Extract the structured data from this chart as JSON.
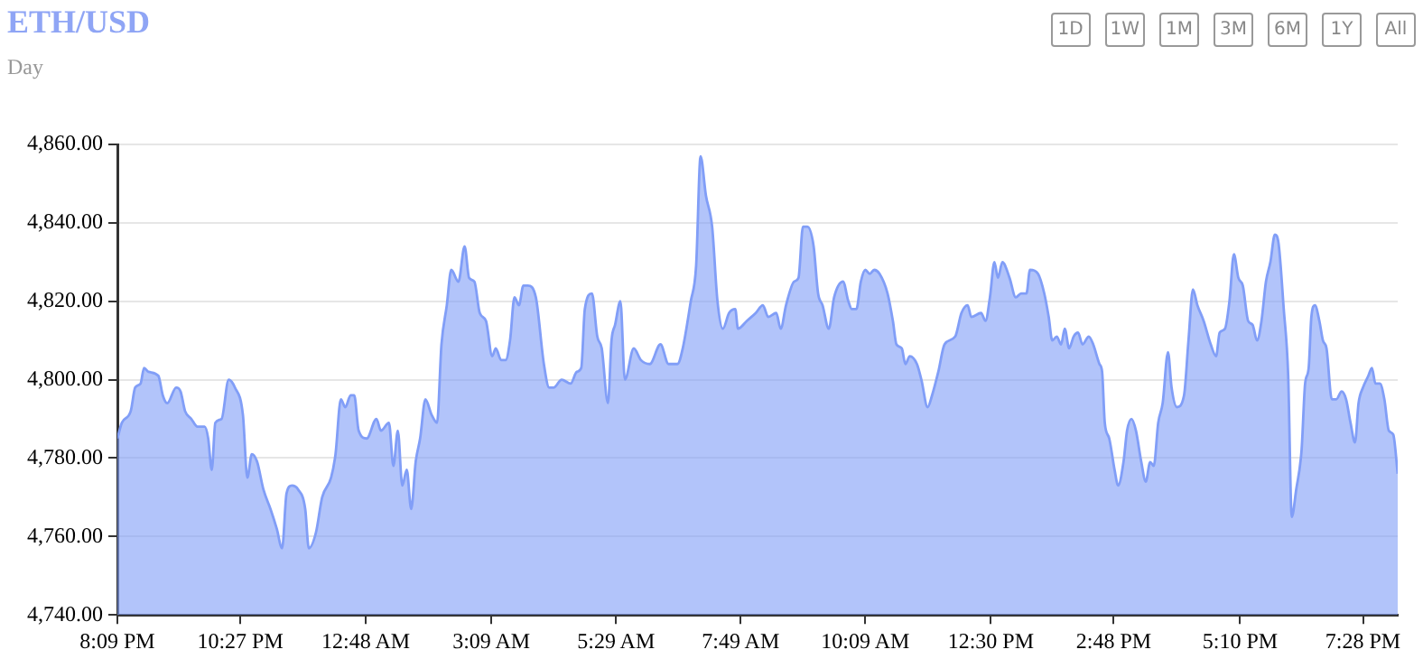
{
  "chart_data": {
    "type": "area",
    "title": "ETH/USD",
    "subtitle": "Day",
    "annotations": [
      "1D",
      "1W",
      "1M",
      "3M",
      "6M",
      "1Y",
      "All"
    ],
    "xlim": [
      "--11-09T20:09",
      "--11-10T20:07"
    ],
    "xticks": [
      {
        "value": "--11-09T20:09",
        "label": "8:09 PM"
      },
      {
        "value": "--11-09T22:27",
        "label": "10:27 PM"
      },
      {
        "value": "--11-10T00:48",
        "label": "12:48 AM"
      },
      {
        "value": "--11-10T03:09",
        "label": "3:09 AM"
      },
      {
        "value": "--11-10T05:29",
        "label": "5:29 AM"
      },
      {
        "value": "--11-10T07:49",
        "label": "7:49 AM"
      },
      {
        "value": "--11-10T10:09",
        "label": "10:09 AM"
      },
      {
        "value": "--11-10T12:30",
        "label": "12:30 PM"
      },
      {
        "value": "--11-10T14:48",
        "label": "2:48 PM"
      },
      {
        "value": "--11-10T17:10",
        "label": "5:10 PM"
      },
      {
        "value": "--11-10T19:28",
        "label": "7:28 PM"
      }
    ],
    "ylim": [
      4740,
      4860
    ],
    "yticks": [
      {
        "value": 4740,
        "label": "4,740.00"
      },
      {
        "value": 4760,
        "label": "4,760.00"
      },
      {
        "value": 4780,
        "label": "4,780.00"
      },
      {
        "value": 4800,
        "label": "4,800.00"
      },
      {
        "value": 4820,
        "label": "4,820.00"
      },
      {
        "value": 4840,
        "label": "4,840.00"
      },
      {
        "value": 4860,
        "label": "4,860.00"
      }
    ],
    "grid": "y",
    "legend": false,
    "marker": "none",
    "line_style": "solid",
    "series": [
      {
        "color": "#819ef7",
        "x": [
          "--11-09T20:09",
          "--11-09T20:14",
          "--11-09T20:24",
          "--11-09T20:29",
          "--11-09T20:35",
          "--11-09T20:39",
          "--11-09T20:44",
          "--11-09T20:55",
          "--11-09T21:00",
          "--11-09T21:05",
          "--11-09T21:15",
          "--11-09T21:20",
          "--11-09T21:25",
          "--11-09T21:32",
          "--11-09T21:39",
          "--11-09T21:47",
          "--11-09T21:51",
          "--11-09T21:55",
          "--11-09T21:59",
          "--11-09T22:06",
          "--11-09T22:14",
          "--11-09T22:21",
          "--11-09T22:30",
          "--11-09T22:35",
          "--11-09T22:40",
          "--11-09T22:46",
          "--11-09T22:53",
          "--11-09T23:01",
          "--11-09T23:08",
          "--11-09T23:14",
          "--11-09T23:19",
          "--11-09T23:25",
          "--11-09T23:32",
          "--11-09T23:40",
          "--11-09T23:44",
          "--11-09T23:52",
          "--11-09T23:59",
          "--11-10T00:09",
          "--11-10T00:14",
          "--11-10T00:20",
          "--11-10T00:25",
          "--11-10T00:31",
          "--11-10T00:35",
          "--11-10T00:40",
          "--11-10T00:49",
          "--11-10T01:00",
          "--11-10T01:05",
          "--11-10T01:14",
          "--11-10T01:19",
          "--11-10T01:24",
          "--11-10T01:29",
          "--11-10T01:34",
          "--11-10T01:39",
          "--11-10T01:44",
          "--11-10T01:49",
          "--11-10T01:55",
          "--11-10T02:02",
          "--11-10T02:08",
          "--11-10T02:13",
          "--11-10T02:19",
          "--11-10T02:24",
          "--11-10T02:32",
          "--11-10T02:39",
          "--11-10T02:44",
          "--11-10T02:50",
          "--11-10T02:56",
          "--11-10T03:03",
          "--11-10T03:10",
          "--11-10T03:14",
          "--11-10T03:20",
          "--11-10T03:25",
          "--11-10T03:30",
          "--11-10T03:35",
          "--11-10T03:40",
          "--11-10T03:45",
          "--11-10T03:50",
          "--11-10T03:59",
          "--11-10T04:08",
          "--11-10T04:14",
          "--11-10T04:19",
          "--11-10T04:28",
          "--11-10T04:38",
          "--11-10T04:45",
          "--11-10T04:50",
          "--11-10T04:54",
          "--11-10T05:02",
          "--11-10T05:08",
          "--11-10T05:13",
          "--11-10T05:20",
          "--11-10T05:24",
          "--11-10T05:28",
          "--11-10T05:34",
          "--11-10T05:39",
          "--11-10T05:49",
          "--11-10T05:57",
          "--11-10T06:07",
          "--11-10T06:19",
          "--11-10T06:28",
          "--11-10T06:38",
          "--11-10T06:44",
          "--11-10T06:53",
          "--11-10T06:59",
          "--11-10T07:04",
          "--11-10T07:10",
          "--11-10T07:17",
          "--11-10T07:23",
          "--11-10T07:29",
          "--11-10T07:36",
          "--11-10T07:43",
          "--11-10T07:46",
          "--11-10T07:56",
          "--11-10T08:06",
          "--11-10T08:14",
          "--11-10T08:20",
          "--11-10T08:29",
          "--11-10T08:34",
          "--11-10T08:40",
          "--11-10T08:49",
          "--11-10T08:54",
          "--11-10T08:59",
          "--11-10T09:04",
          "--11-10T09:11",
          "--11-10T09:16",
          "--11-10T09:21",
          "--11-10T09:28",
          "--11-10T09:34",
          "--11-10T09:44",
          "--11-10T09:50",
          "--11-10T09:54",
          "--11-10T09:59",
          "--11-10T10:04",
          "--11-10T10:09",
          "--11-10T10:14",
          "--11-10T10:19",
          "--11-10T10:25",
          "--11-10T10:34",
          "--11-10T10:40",
          "--11-10T10:44",
          "--11-10T10:50",
          "--11-10T10:54",
          "--11-10T10:59",
          "--11-10T11:07",
          "--11-10T11:12",
          "--11-10T11:19",
          "--11-10T11:24",
          "--11-10T11:31",
          "--11-10T11:38",
          "--11-10T11:50",
          "--11-10T11:57",
          "--11-10T12:04",
          "--11-10T12:08",
          "--11-10T12:19",
          "--11-10T12:24",
          "--11-10T12:29",
          "--11-10T12:34",
          "--11-10T12:38",
          "--11-10T12:43",
          "--11-10T12:51",
          "--11-10T12:58",
          "--11-10T13:04",
          "--11-10T13:10",
          "--11-10T13:14",
          "--11-10T13:23",
          "--11-10T13:30",
          "--11-10T13:35",
          "--11-10T13:39",
          "--11-10T13:44",
          "--11-10T13:49",
          "--11-10T13:53",
          "--11-10T13:58",
          "--11-10T14:03",
          "--11-10T14:08",
          "--11-10T14:13",
          "--11-10T14:20",
          "--11-10T14:25",
          "--11-10T14:32",
          "--11-10T14:35",
          "--11-10T14:38",
          "--11-10T14:43",
          "--11-10T14:49",
          "--11-10T14:53",
          "--11-10T14:59",
          "--11-10T15:03",
          "--11-10T15:08",
          "--11-10T15:13",
          "--11-10T15:19",
          "--11-10T15:24",
          "--11-10T15:29",
          "--11-10T15:33",
          "--11-10T15:38",
          "--11-10T15:43",
          "--11-10T15:49",
          "--11-10T15:53",
          "--11-10T15:59",
          "--11-10T16:07",
          "--11-10T16:12",
          "--11-10T16:17",
          "--11-10T16:22",
          "--11-10T16:29",
          "--11-10T16:37",
          "--11-10T16:43",
          "--11-10T16:47",
          "--11-10T16:53",
          "--11-10T16:58",
          "--11-10T17:03",
          "--11-10T17:08",
          "--11-10T17:13",
          "--11-10T17:19",
          "--11-10T17:24",
          "--11-10T17:29",
          "--11-10T17:34",
          "--11-10T17:39",
          "--11-10T17:44",
          "--11-10T17:49",
          "--11-10T17:53",
          "--11-10T17:59",
          "--11-10T18:04",
          "--11-10T18:08",
          "--11-10T18:13",
          "--11-10T18:19",
          "--11-10T18:23",
          "--11-10T18:27",
          "--11-10T18:30",
          "--11-10T18:34",
          "--11-10T18:39",
          "--11-10T18:43",
          "--11-10T18:47",
          "--11-10T18:53",
          "--11-10T18:58",
          "--11-10T19:04",
          "--11-10T19:09",
          "--11-10T19:14",
          "--11-10T19:19",
          "--11-10T19:23",
          "--11-10T19:28",
          "--11-10T19:34",
          "--11-10T19:38",
          "--11-10T19:42",
          "--11-10T19:47",
          "--11-10T19:52",
          "--11-10T19:57",
          "--11-10T20:02",
          "--11-10T20:07"
        ],
        "values": [
          4785,
          4789,
          4792,
          4798,
          4799,
          4803,
          4802,
          4801,
          4796,
          4794,
          4798,
          4797,
          4792,
          4790,
          4788,
          4788,
          4785,
          4777,
          4789,
          4790,
          4800,
          4798,
          4791,
          4775,
          4781,
          4779,
          4772,
          4767,
          4762,
          4757,
          4771,
          4773,
          4772,
          4767,
          4757,
          4761,
          4770,
          4775,
          4781,
          4795,
          4793,
          4796,
          4796,
          4787,
          4785,
          4790,
          4787,
          4789,
          4778,
          4787,
          4773,
          4777,
          4767,
          4779,
          4785,
          4795,
          4791,
          4789,
          4809,
          4819,
          4828,
          4825,
          4834,
          4826,
          4825,
          4817,
          4815,
          4806,
          4808,
          4805,
          4805,
          4810,
          4821,
          4819,
          4824,
          4824,
          4821,
          4804,
          4798,
          4798,
          4800,
          4799,
          4802,
          4803,
          4818,
          4822,
          4811,
          4808,
          4794,
          4810,
          4814,
          4820,
          4800,
          4808,
          4805,
          4804,
          4809,
          4804,
          4804,
          4808,
          4820,
          4829,
          4857,
          4847,
          4839,
          4820,
          4813,
          4817,
          4818,
          4813,
          4815,
          4817,
          4819,
          4816,
          4817,
          4813,
          4819,
          4825,
          4826,
          4839,
          4839,
          4834,
          4822,
          4819,
          4813,
          4821,
          4825,
          4820,
          4818,
          4818,
          4825,
          4828,
          4827,
          4828,
          4827,
          4822,
          4815,
          4809,
          4808,
          4804,
          4806,
          4804,
          4800,
          4793,
          4796,
          4802,
          4809,
          4811,
          4817,
          4819,
          4816,
          4817,
          4815,
          4821,
          4830,
          4826,
          4830,
          4826,
          4821,
          4822,
          4822,
          4828,
          4827,
          4822,
          4816,
          4810,
          4811,
          4809,
          4813,
          4808,
          4811,
          4812,
          4809,
          4811,
          4809,
          4804,
          4802,
          4789,
          4785,
          4777,
          4773,
          4779,
          4787,
          4790,
          4787,
          4779,
          4774,
          4779,
          4778,
          4789,
          4794,
          4807,
          4798,
          4793,
          4796,
          4810,
          4823,
          4819,
          4815,
          4809,
          4806,
          4812,
          4813,
          4820,
          4832,
          4826,
          4824,
          4815,
          4814,
          4810,
          4815,
          4825,
          4830,
          4837,
          4835,
          4818,
          4801,
          4765,
          4772,
          4782,
          4799,
          4803,
          4816,
          4819,
          4815,
          4810,
          4808,
          4795,
          4795,
          4797,
          4795,
          4789,
          4784,
          4794,
          4798,
          4801,
          4803,
          4799,
          4799,
          4795,
          4787,
          4786,
          4776
        ]
      }
    ]
  }
}
